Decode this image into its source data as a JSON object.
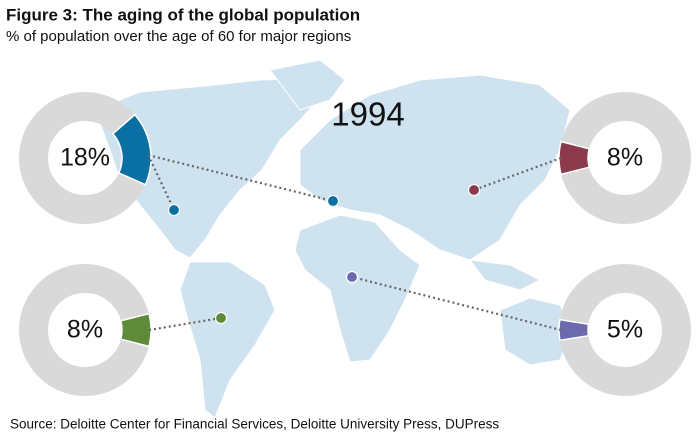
{
  "chart_data": {
    "type": "pie",
    "title": "Figure 3: The aging of the global population",
    "subtitle": "% of population over the age of 60 for major regions",
    "annotation": "1994",
    "source": "Source: Deloitte Center for Financial Services, Deloitte University Press, DUPress",
    "values": [
      18,
      8,
      8,
      5
    ],
    "value_labels": [
      "18%",
      "8%",
      "8%",
      "5%"
    ],
    "colors": [
      "#0a6fa3",
      "#8b3a4c",
      "#5e8b3a",
      "#6b6aad"
    ],
    "remainder_color": "#d9d9d9"
  }
}
